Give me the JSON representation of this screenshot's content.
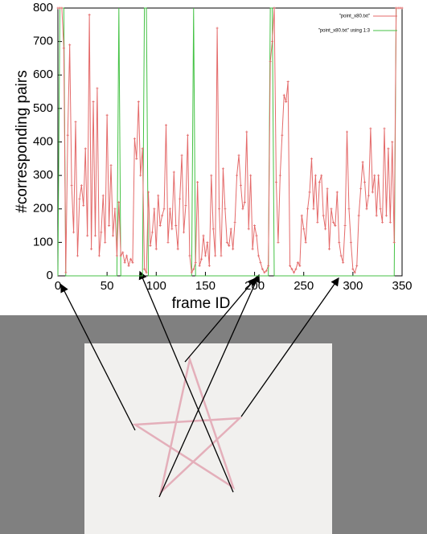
{
  "chart_data": {
    "type": "line",
    "xlabel": "frame ID",
    "ylabel": "#corresponding pairs",
    "xlim": [
      0,
      350
    ],
    "xticks": [
      0,
      50,
      100,
      150,
      200,
      250,
      300,
      350
    ],
    "ylim": [
      0,
      800
    ],
    "yticks": [
      0,
      100,
      200,
      300,
      400,
      500,
      600,
      700,
      800
    ],
    "legend": "upper right",
    "x": [
      0,
      2,
      4,
      6,
      8,
      10,
      12,
      14,
      16,
      18,
      20,
      22,
      24,
      26,
      28,
      30,
      32,
      34,
      36,
      38,
      40,
      42,
      44,
      46,
      48,
      50,
      52,
      54,
      56,
      58,
      60,
      62,
      64,
      66,
      68,
      70,
      72,
      74,
      76,
      78,
      80,
      82,
      84,
      86,
      88,
      90,
      92,
      94,
      96,
      98,
      100,
      102,
      104,
      106,
      108,
      110,
      112,
      114,
      116,
      118,
      120,
      122,
      124,
      126,
      128,
      130,
      132,
      134,
      136,
      138,
      140,
      142,
      144,
      146,
      148,
      150,
      152,
      154,
      156,
      158,
      160,
      162,
      164,
      166,
      168,
      170,
      172,
      174,
      176,
      178,
      180,
      182,
      184,
      186,
      188,
      190,
      192,
      194,
      196,
      198,
      200,
      202,
      204,
      206,
      208,
      210,
      212,
      214,
      216,
      218,
      220,
      222,
      224,
      226,
      228,
      230,
      232,
      234,
      236,
      238,
      240,
      242,
      244,
      246,
      248,
      250,
      252,
      254,
      256,
      258,
      260,
      262,
      264,
      266,
      268,
      270,
      272,
      274,
      276,
      278,
      280,
      282,
      284,
      286,
      288,
      290,
      292,
      294,
      296,
      298,
      300,
      302,
      304,
      306,
      308,
      310,
      312,
      314,
      316,
      318,
      320,
      322,
      324,
      326,
      328,
      330,
      332,
      334,
      336,
      338,
      340,
      342,
      344,
      346,
      348,
      350
    ],
    "series": [
      {
        "name": "\"point_x80.txt\"",
        "color": "#e46a6a",
        "markers": true,
        "values": [
          800,
          800,
          800,
          680,
          10,
          420,
          690,
          270,
          130,
          460,
          60,
          230,
          270,
          210,
          380,
          120,
          780,
          80,
          520,
          120,
          560,
          60,
          130,
          240,
          100,
          480,
          150,
          330,
          120,
          200,
          60,
          220,
          60,
          70,
          40,
          60,
          30,
          50,
          40,
          410,
          350,
          520,
          300,
          380,
          20,
          10,
          250,
          90,
          130,
          200,
          80,
          240,
          150,
          180,
          200,
          450,
          100,
          200,
          140,
          310,
          150,
          80,
          230,
          360,
          130,
          210,
          420,
          60,
          10,
          20,
          40,
          280,
          30,
          50,
          120,
          60,
          100,
          30,
          300,
          140,
          60,
          740,
          200,
          60,
          320,
          200,
          100,
          90,
          140,
          80,
          160,
          300,
          360,
          270,
          200,
          220,
          430,
          140,
          300,
          80,
          150,
          120,
          60,
          40,
          20,
          10,
          15,
          30,
          640,
          700,
          800,
          280,
          100,
          300,
          420,
          540,
          520,
          580,
          30,
          20,
          10,
          20,
          40,
          30,
          180,
          140,
          100,
          200,
          250,
          350,
          200,
          300,
          160,
          280,
          300,
          180,
          140,
          260,
          80,
          200,
          160,
          150,
          250,
          100,
          60,
          40,
          150,
          430,
          200,
          100,
          20,
          10,
          30,
          180,
          260,
          340,
          280,
          200,
          240,
          440,
          250,
          300,
          180,
          300,
          200,
          160,
          440,
          180,
          380,
          160,
          400,
          100,
          800,
          800,
          800,
          800
        ]
      },
      {
        "name": "\"point_x80.txt\" using 1:3",
        "color": "#44c244",
        "markers": false,
        "values": [
          0,
          800,
          800,
          800,
          0,
          0,
          0,
          0,
          0,
          0,
          0,
          0,
          0,
          0,
          0,
          0,
          0,
          0,
          0,
          0,
          0,
          0,
          0,
          0,
          0,
          0,
          0,
          0,
          0,
          0,
          0,
          800,
          0,
          0,
          0,
          0,
          0,
          0,
          0,
          0,
          0,
          0,
          0,
          0,
          800,
          800,
          0,
          0,
          0,
          0,
          0,
          0,
          0,
          0,
          0,
          0,
          0,
          0,
          0,
          0,
          0,
          0,
          0,
          0,
          0,
          0,
          0,
          0,
          0,
          800,
          0,
          0,
          0,
          0,
          0,
          0,
          0,
          0,
          0,
          0,
          0,
          0,
          0,
          0,
          0,
          0,
          0,
          0,
          0,
          0,
          0,
          0,
          0,
          0,
          0,
          0,
          0,
          0,
          0,
          0,
          0,
          0,
          0,
          0,
          0,
          0,
          0,
          0,
          800,
          800,
          0,
          0,
          0,
          0,
          0,
          0,
          0,
          0,
          0,
          0,
          0,
          0,
          0,
          0,
          0,
          0,
          0,
          0,
          0,
          0,
          0,
          0,
          0,
          0,
          0,
          0,
          0,
          0,
          0,
          0,
          0,
          0,
          0,
          0,
          0,
          0,
          0,
          0,
          0,
          0,
          0,
          0,
          0,
          0,
          0,
          0,
          0,
          0,
          0,
          0,
          0,
          0,
          0,
          0,
          0,
          0,
          0,
          0,
          0,
          0,
          0,
          0,
          800,
          800,
          800,
          800
        ]
      }
    ]
  }
}
